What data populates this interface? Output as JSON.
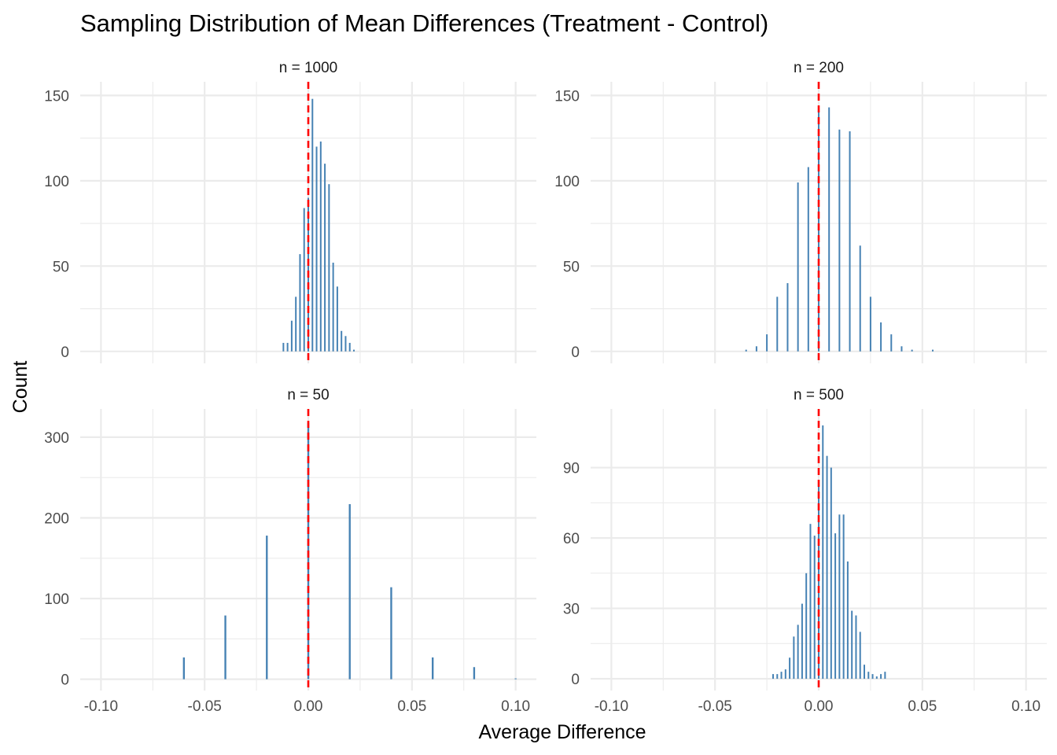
{
  "title": "Sampling Distribution of Mean Differences (Treatment - Control)",
  "xlabel": "Average Difference",
  "ylabel": "Count",
  "colors": {
    "bar": "#4682b4",
    "reference_line": "#ff0000",
    "grid": "#ebebeb"
  },
  "chart_data": [
    {
      "type": "bar",
      "panel": "n = 1000",
      "position": "top-left",
      "xlim": [
        -0.11,
        0.11
      ],
      "ylim": [
        -7,
        158
      ],
      "x_ticks": [
        -0.1,
        -0.05,
        0.0,
        0.05,
        0.1
      ],
      "x_tick_labels": [
        "-0.10",
        "-0.05",
        "0.00",
        "0.05",
        "0.10"
      ],
      "y_ticks": [
        0,
        50,
        100,
        150
      ],
      "y_tick_labels": [
        "0",
        "50",
        "100",
        "150"
      ],
      "bar_width": 0.0007,
      "reference_x": 0,
      "x": [
        -0.012,
        -0.01,
        -0.008,
        -0.006,
        -0.004,
        -0.002,
        0.0,
        0.002,
        0.004,
        0.006,
        0.008,
        0.01,
        0.012,
        0.014,
        0.016,
        0.018,
        0.02,
        0.022
      ],
      "values": [
        5,
        5,
        18,
        32,
        57,
        84,
        90,
        148,
        120,
        123,
        110,
        98,
        52,
        38,
        12,
        9,
        5,
        1
      ]
    },
    {
      "type": "bar",
      "panel": "n = 200",
      "position": "top-right",
      "xlim": [
        -0.11,
        0.11
      ],
      "ylim": [
        -7,
        158
      ],
      "x_ticks": [
        -0.1,
        -0.05,
        0.0,
        0.05,
        0.1
      ],
      "x_tick_labels": [
        "-0.10",
        "-0.05",
        "0.00",
        "0.05",
        "0.10"
      ],
      "y_ticks": [
        0,
        50,
        100,
        150
      ],
      "y_tick_labels": [
        "0",
        "50",
        "100",
        "150"
      ],
      "bar_width": 0.0007,
      "reference_x": 0,
      "x": [
        -0.035,
        -0.03,
        -0.025,
        -0.02,
        -0.015,
        -0.01,
        -0.005,
        0.0,
        0.005,
        0.01,
        0.015,
        0.02,
        0.025,
        0.03,
        0.035,
        0.04,
        0.045,
        0.055
      ],
      "values": [
        1,
        3,
        10,
        32,
        40,
        99,
        108,
        142,
        143,
        130,
        129,
        62,
        32,
        17,
        10,
        3,
        1,
        1
      ]
    },
    {
      "type": "bar",
      "panel": "n = 50",
      "position": "bottom-left",
      "xlim": [
        -0.11,
        0.11
      ],
      "ylim": [
        -14,
        335
      ],
      "x_ticks": [
        -0.1,
        -0.05,
        0.0,
        0.05,
        0.1
      ],
      "x_tick_labels": [
        "-0.10",
        "-0.05",
        "0.00",
        "0.05",
        "0.10"
      ],
      "y_ticks": [
        0,
        100,
        200,
        300
      ],
      "y_tick_labels": [
        "0",
        "100",
        "200",
        "300"
      ],
      "bar_width": 0.0009,
      "reference_x": 0,
      "x": [
        -0.06,
        -0.04,
        -0.02,
        0.0,
        0.02,
        0.04,
        0.06,
        0.08,
        0.1
      ],
      "values": [
        27,
        79,
        178,
        318,
        217,
        114,
        27,
        15,
        1
      ]
    },
    {
      "type": "bar",
      "panel": "n = 500",
      "position": "bottom-right",
      "xlim": [
        -0.11,
        0.11
      ],
      "ylim": [
        -5,
        115
      ],
      "x_ticks": [
        -0.1,
        -0.05,
        0.0,
        0.05,
        0.1
      ],
      "x_tick_labels": [
        "-0.10",
        "-0.05",
        "0.00",
        "0.05",
        "0.10"
      ],
      "y_ticks": [
        0,
        30,
        60,
        90
      ],
      "y_tick_labels": [
        "0",
        "30",
        "60",
        "90"
      ],
      "bar_width": 0.0006,
      "reference_x": 0,
      "x": [
        -0.022,
        -0.02,
        -0.018,
        -0.016,
        -0.014,
        -0.012,
        -0.01,
        -0.008,
        -0.006,
        -0.004,
        -0.002,
        0.0,
        0.002,
        0.004,
        0.006,
        0.008,
        0.01,
        0.012,
        0.014,
        0.016,
        0.018,
        0.02,
        0.022,
        0.024,
        0.026,
        0.028,
        0.03,
        0.032
      ],
      "values": [
        2,
        2,
        3,
        4,
        9,
        18,
        23,
        32,
        45,
        66,
        61,
        82,
        108,
        95,
        90,
        62,
        70,
        70,
        50,
        29,
        27,
        20,
        6,
        3,
        2,
        1,
        2,
        3
      ]
    }
  ]
}
